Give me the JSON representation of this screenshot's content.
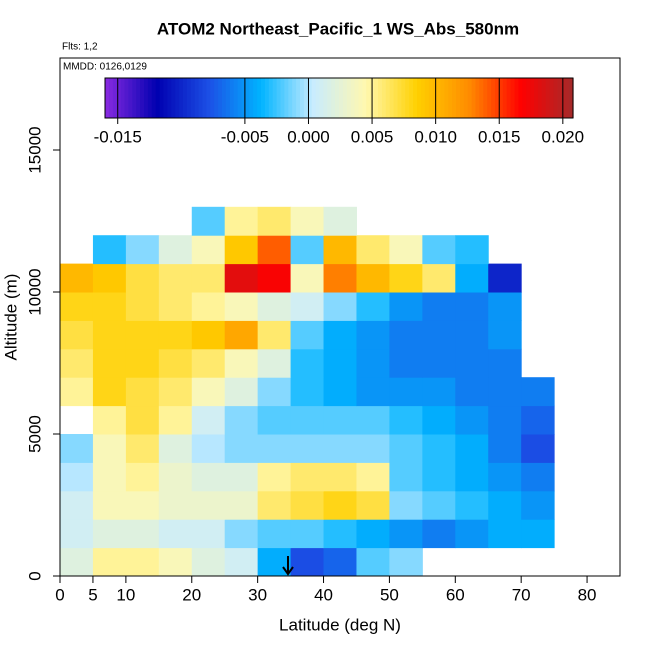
{
  "chart_data": {
    "type": "heatmap",
    "title": "ATOM2 Northeast_Pacific_1 WS_Abs_580nm",
    "subtitle": "Flts: 1,2",
    "annotation": "MMDD: 0126,0129",
    "x_label": "Latitude (deg N)",
    "y_label": "Altitude (m)",
    "xlim": [
      0,
      85
    ],
    "ylim": [
      0,
      18240
    ],
    "xticks": [
      0,
      5,
      10,
      20,
      30,
      40,
      50,
      60,
      70,
      80
    ],
    "yticks": [
      0,
      5000,
      10000,
      15000
    ],
    "xbins": [
      0,
      5,
      10,
      15,
      20,
      25,
      30,
      35,
      40,
      45,
      50,
      55,
      60,
      65,
      70,
      75
    ],
    "ybins": [
      0,
      1000,
      2000,
      3000,
      4000,
      5000,
      6000,
      7000,
      8000,
      9000,
      10000,
      11000,
      12000,
      13000
    ],
    "z": [
      [
        0.002,
        0.005,
        0.005,
        0.004,
        0.002,
        0.001,
        -0.004,
        -0.008,
        -0.007,
        -0.002,
        -0.001,
        null,
        null,
        null,
        null
      ],
      [
        0.001,
        0.002,
        0.002,
        0.001,
        0.001,
        -0.001,
        -0.002,
        -0.002,
        -0.003,
        -0.004,
        -0.005,
        -0.006,
        -0.005,
        -0.004,
        -0.004
      ],
      [
        0.001,
        0.004,
        0.004,
        0.003,
        0.003,
        0.003,
        0.006,
        0.007,
        0.008,
        0.007,
        -0.001,
        -0.002,
        -0.003,
        -0.004,
        -0.005
      ],
      [
        0.0,
        0.004,
        0.005,
        0.003,
        0.002,
        0.002,
        0.005,
        0.006,
        0.006,
        0.005,
        -0.002,
        -0.003,
        -0.004,
        -0.005,
        -0.006
      ],
      [
        -0.001,
        0.004,
        0.006,
        0.002,
        0.0,
        -0.001,
        -0.001,
        -0.001,
        -0.001,
        -0.001,
        -0.002,
        -0.003,
        -0.004,
        -0.006,
        -0.008
      ],
      [
        null,
        0.005,
        0.007,
        0.005,
        0.001,
        -0.001,
        -0.002,
        -0.002,
        -0.002,
        -0.002,
        -0.003,
        -0.004,
        -0.005,
        -0.006,
        -0.007
      ],
      [
        0.005,
        0.008,
        0.007,
        0.006,
        0.004,
        0.002,
        -0.001,
        -0.003,
        -0.004,
        -0.005,
        -0.005,
        -0.005,
        -0.006,
        -0.006,
        -0.006
      ],
      [
        0.006,
        0.008,
        0.008,
        0.007,
        0.006,
        0.004,
        0.002,
        -0.003,
        -0.004,
        -0.005,
        -0.006,
        -0.006,
        -0.006,
        -0.006,
        null
      ],
      [
        0.007,
        0.008,
        0.008,
        0.008,
        0.009,
        0.011,
        0.006,
        -0.002,
        -0.004,
        -0.005,
        -0.006,
        -0.006,
        -0.006,
        -0.005,
        null
      ],
      [
        0.008,
        0.008,
        0.007,
        0.006,
        0.005,
        0.004,
        0.002,
        0.001,
        -0.001,
        -0.003,
        -0.005,
        -0.006,
        -0.006,
        -0.005,
        null
      ],
      [
        0.01,
        0.009,
        0.007,
        0.006,
        0.006,
        0.018,
        0.017,
        0.004,
        0.013,
        0.01,
        0.008,
        0.006,
        -0.004,
        -0.01,
        null
      ],
      [
        null,
        -0.003,
        -0.001,
        0.002,
        0.004,
        0.009,
        0.014,
        -0.002,
        0.01,
        0.006,
        0.004,
        -0.002,
        -0.003,
        null,
        null
      ],
      [
        null,
        null,
        null,
        null,
        -0.002,
        0.005,
        0.006,
        0.004,
        0.002,
        null,
        null,
        null,
        null,
        null,
        null
      ]
    ],
    "colorbar_lim": [
      -0.016,
      0.0208
    ],
    "colorbar_ticks": [
      {
        "value": -0.015,
        "label": "-0.015"
      },
      {
        "value": -0.005,
        "label": "-0.005"
      },
      {
        "value": 0,
        "label": "0.000"
      },
      {
        "value": 0.005,
        "label": "0.005"
      },
      {
        "value": 0.01,
        "label": "0.010"
      },
      {
        "value": 0.015,
        "label": "0.015"
      },
      {
        "value": 0.02,
        "label": "0.020"
      }
    ],
    "colorscale": [
      "#8a2be2",
      "#0000b0",
      "#1c50e6",
      "#00b4ff",
      "#c8ecff",
      "#fff8b0",
      "#ffd000",
      "#ff8c00",
      "#ff0000",
      "#a52a2a"
    ]
  }
}
